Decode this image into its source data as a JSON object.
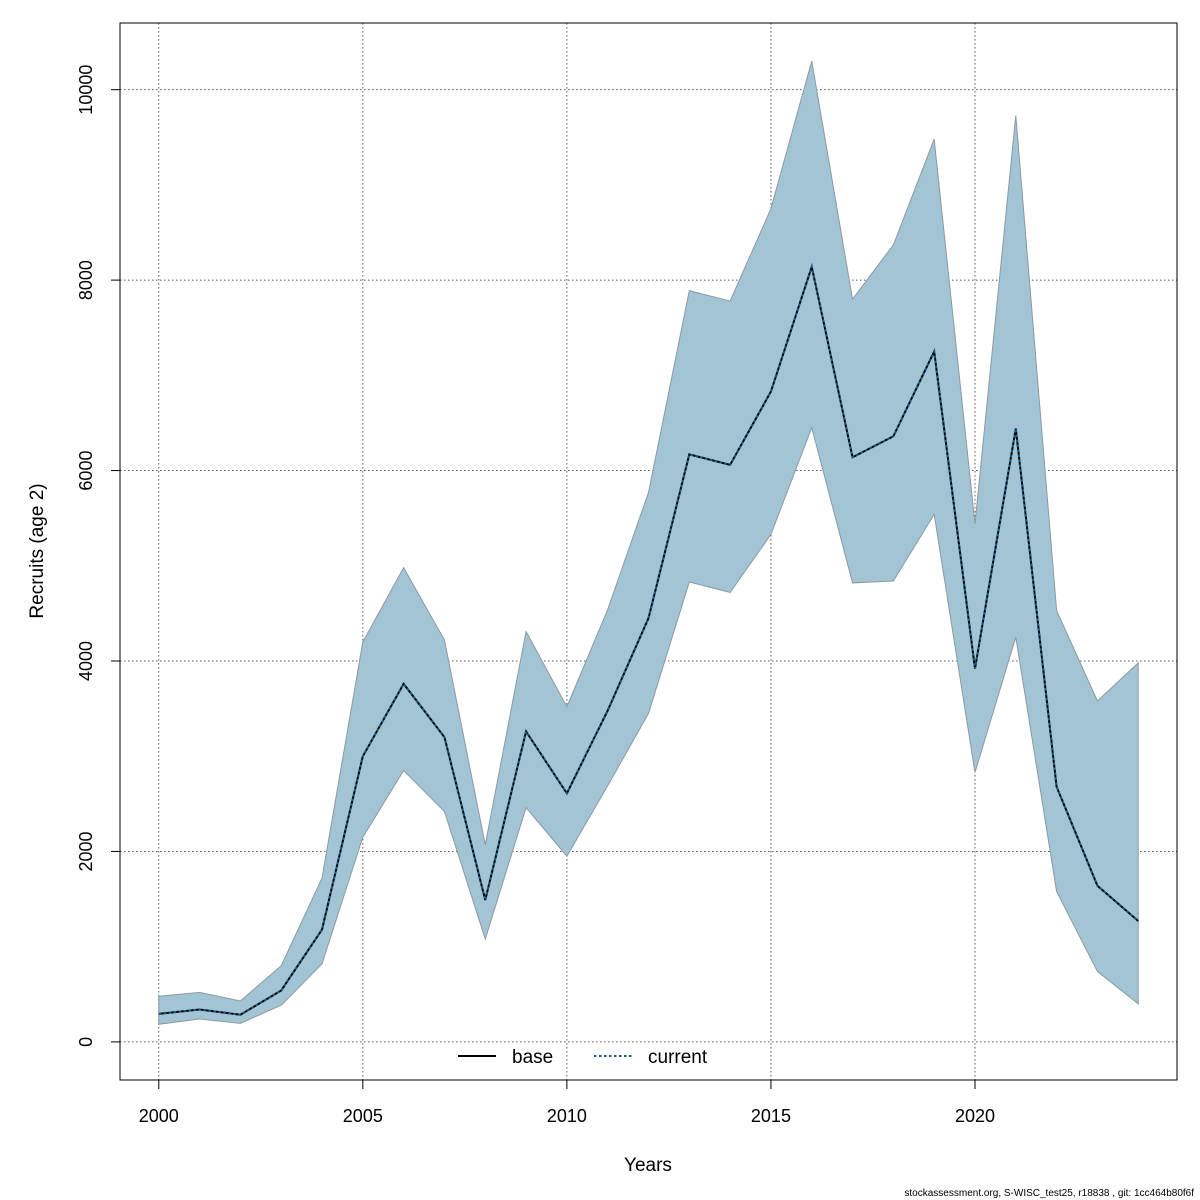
{
  "chart_data": {
    "type": "area",
    "title": "",
    "xlabel": "Years",
    "ylabel": "Recruits (age 2)",
    "xlim": [
      1999.05,
      2024.95
    ],
    "ylim": [
      -400,
      10700
    ],
    "x_ticks": [
      "2000",
      "2005",
      "2010",
      "2015",
      "2020"
    ],
    "x_tick_values": [
      2000,
      2005,
      2010,
      2015,
      2020
    ],
    "y_ticks": [
      "0",
      "2000",
      "4000",
      "6000",
      "8000",
      "10000"
    ],
    "y_tick_values": [
      0,
      2000,
      4000,
      6000,
      8000,
      10000
    ],
    "grid": true,
    "legend_position": "bottom",
    "x": [
      2000,
      2001,
      2002,
      2003,
      2004,
      2005,
      2006,
      2007,
      2008,
      2009,
      2010,
      2011,
      2012,
      2013,
      2014,
      2015,
      2016,
      2017,
      2018,
      2019,
      2020,
      2021,
      2022,
      2023,
      2024
    ],
    "series": [
      {
        "name": "base",
        "line_style": "solid",
        "color": "#000000",
        "values": [
          295,
          340,
          285,
          540,
          1180,
          3000,
          3760,
          3200,
          1490,
          3260,
          2610,
          3480,
          4450,
          6170,
          6060,
          6830,
          8140,
          6140,
          6360,
          7250,
          3920,
          6440,
          2680,
          1640,
          1270
        ]
      },
      {
        "name": "current",
        "line_style": "dotted",
        "color": "#1a5f8a",
        "values": [
          295,
          340,
          285,
          540,
          1180,
          3000,
          3760,
          3200,
          1490,
          3260,
          2610,
          3480,
          4450,
          6170,
          6060,
          6830,
          8140,
          6140,
          6360,
          7250,
          3920,
          6440,
          2680,
          1640,
          1270
        ]
      }
    ],
    "interval": {
      "lower": [
        185,
        240,
        195,
        385,
        820,
        2150,
        2850,
        2420,
        1080,
        2460,
        1950,
        2690,
        3450,
        4830,
        4720,
        5330,
        6450,
        4820,
        4840,
        5540,
        2830,
        4250,
        1580,
        740,
        400
      ],
      "upper": [
        480,
        520,
        430,
        800,
        1720,
        4200,
        4980,
        4220,
        2070,
        4310,
        3520,
        4540,
        5770,
        7890,
        7780,
        8750,
        10300,
        7800,
        8370,
        9480,
        5440,
        9730,
        4530,
        3580,
        3980
      ],
      "fill_color": "#a3c4d5",
      "edge_color": "#8a9aa3"
    },
    "legend": {
      "entries": [
        {
          "label": "base",
          "style": "solid",
          "color": "#000000"
        },
        {
          "label": "current",
          "style": "dotted",
          "color": "#1a5f8a"
        }
      ]
    }
  },
  "footer": "stockassessment.org, S-WISC_test25, r18838 , git: 1cc464b80f6f"
}
